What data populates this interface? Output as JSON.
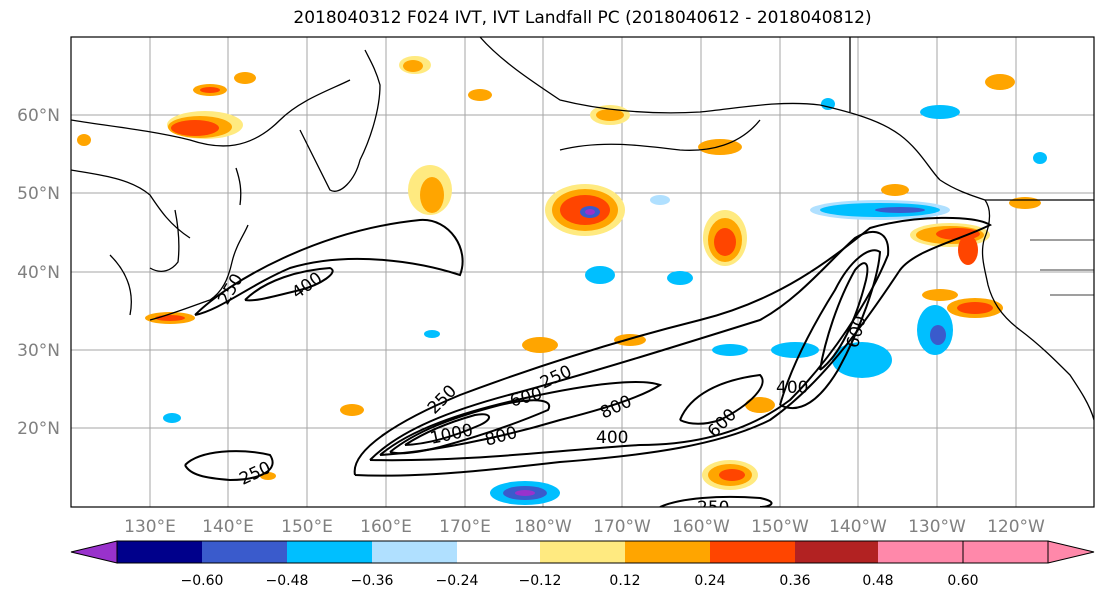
{
  "title": "2018040312 F024 IVT, IVT Landfall PC (2018040612 - 2018040812)",
  "map": {
    "lon_ticks": [
      "130°E",
      "140°E",
      "150°E",
      "160°E",
      "170°E",
      "180°W",
      "170°W",
      "160°W",
      "150°W",
      "140°W",
      "130°W",
      "120°W"
    ],
    "lat_ticks": [
      "60°N",
      "50°N",
      "40°N",
      "30°N",
      "20°N"
    ],
    "contour_labels": [
      "250",
      "400",
      "250",
      "250",
      "600",
      "800",
      "1000",
      "800",
      "400",
      "800",
      "600",
      "400",
      "600",
      "250",
      "250"
    ],
    "colorbar": {
      "colors": [
        "#9932cc",
        "#00008b",
        "#3a5bcc",
        "#00bfff",
        "#b0e0ff",
        "#ffffff",
        "#ffea80",
        "#ffa500",
        "#ff4500",
        "#b22222",
        "#ff88aa"
      ],
      "ticks": [
        "−0.60",
        "−0.48",
        "−0.36",
        "−0.24",
        "−0.12",
        "0.12",
        "0.24",
        "0.36",
        "0.48",
        "0.60"
      ]
    }
  }
}
